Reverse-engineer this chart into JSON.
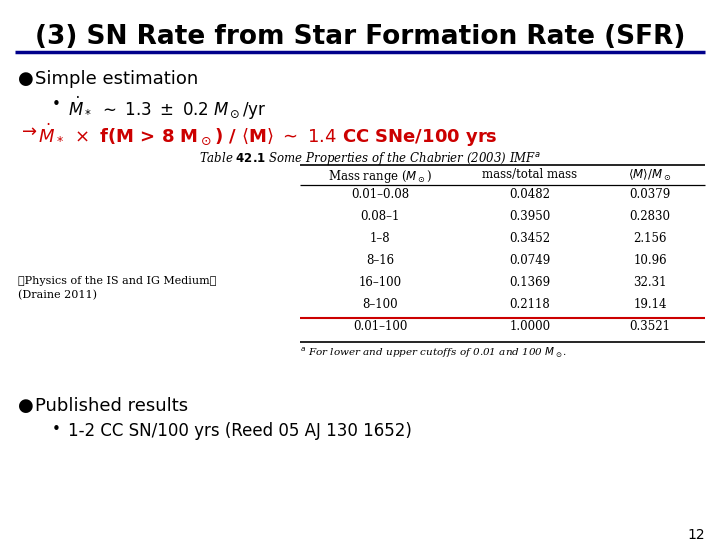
{
  "title": "(3) SN Rate from Star Formation Rate (SFR)",
  "bg_color": "#ffffff",
  "title_underline_color": "#00008B",
  "arrow_line_color": "#cc0000",
  "highlight_color": "#cc0000",
  "table_rows": [
    [
      "0.01–0.08",
      "0.0482",
      "0.0379"
    ],
    [
      "0.08–1",
      "0.3950",
      "0.2830"
    ],
    [
      "1–8",
      "0.3452",
      "2.156"
    ],
    [
      "8–16",
      "0.0749",
      "10.96"
    ],
    [
      "16–100",
      "0.1369",
      "32.31"
    ],
    [
      "8–100",
      "0.2118",
      "19.14"
    ],
    [
      "0.01–100",
      "1.0000",
      "0.3521"
    ]
  ],
  "page_num": "12"
}
